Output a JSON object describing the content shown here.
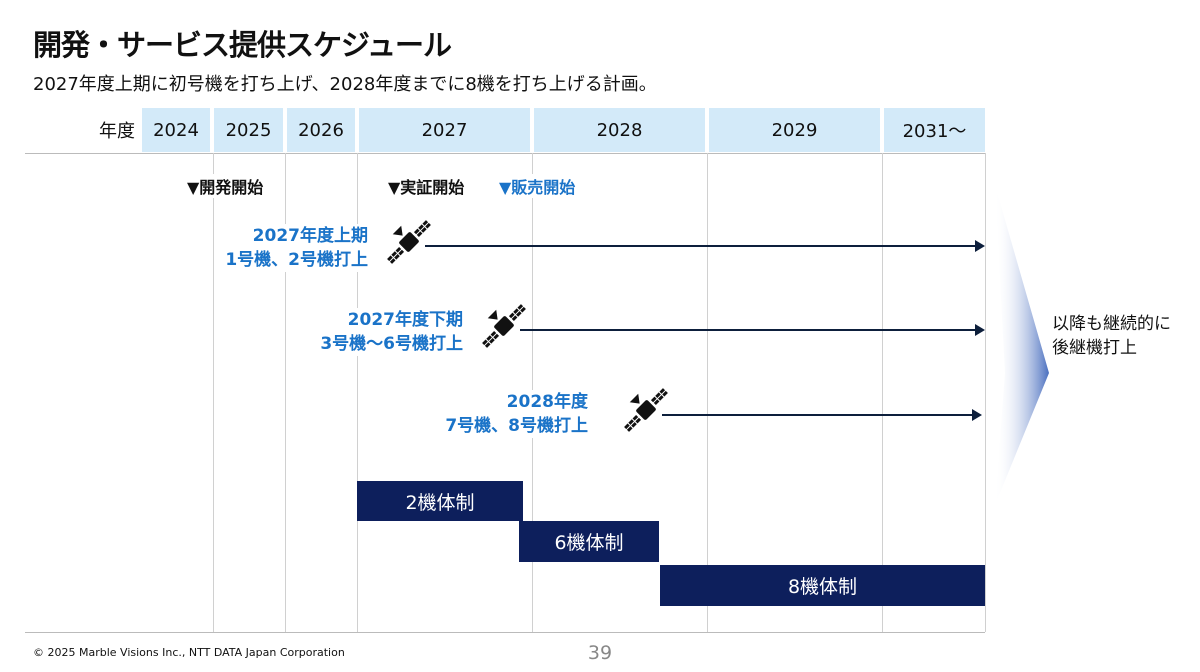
{
  "title": "開発・サービス提供スケジュール",
  "subtitle": "2027年度上期に初号機を打ち上げ、2028年度までに8機を打ち上げる計画。",
  "year_label": "年度",
  "years": [
    "2024",
    "2025",
    "2026",
    "2027",
    "2028",
    "2029",
    "2031〜"
  ],
  "milestones": {
    "dev": "▼開発開始",
    "demo": "▼実証開始",
    "sales": "▼販売開始"
  },
  "launches": [
    {
      "period": "2027年度上期",
      "units": "1号機、2号機打上"
    },
    {
      "period": "2027年度下期",
      "units": "3号機〜6号機打上"
    },
    {
      "period": "2028年度",
      "units": "7号機、8号機打上"
    }
  ],
  "fleet": [
    "2機体制",
    "6機体制",
    "8機体制"
  ],
  "continuation": [
    "以降も継続的に",
    "後継機打上"
  ],
  "footer": {
    "copyright": "© 2025 Marble Visions Inc., NTT DATA Japan Corporation",
    "page": "39"
  },
  "colors": {
    "accent": "#1a73c8",
    "navy": "#0d1f5c",
    "header": "#d3eaf9"
  }
}
